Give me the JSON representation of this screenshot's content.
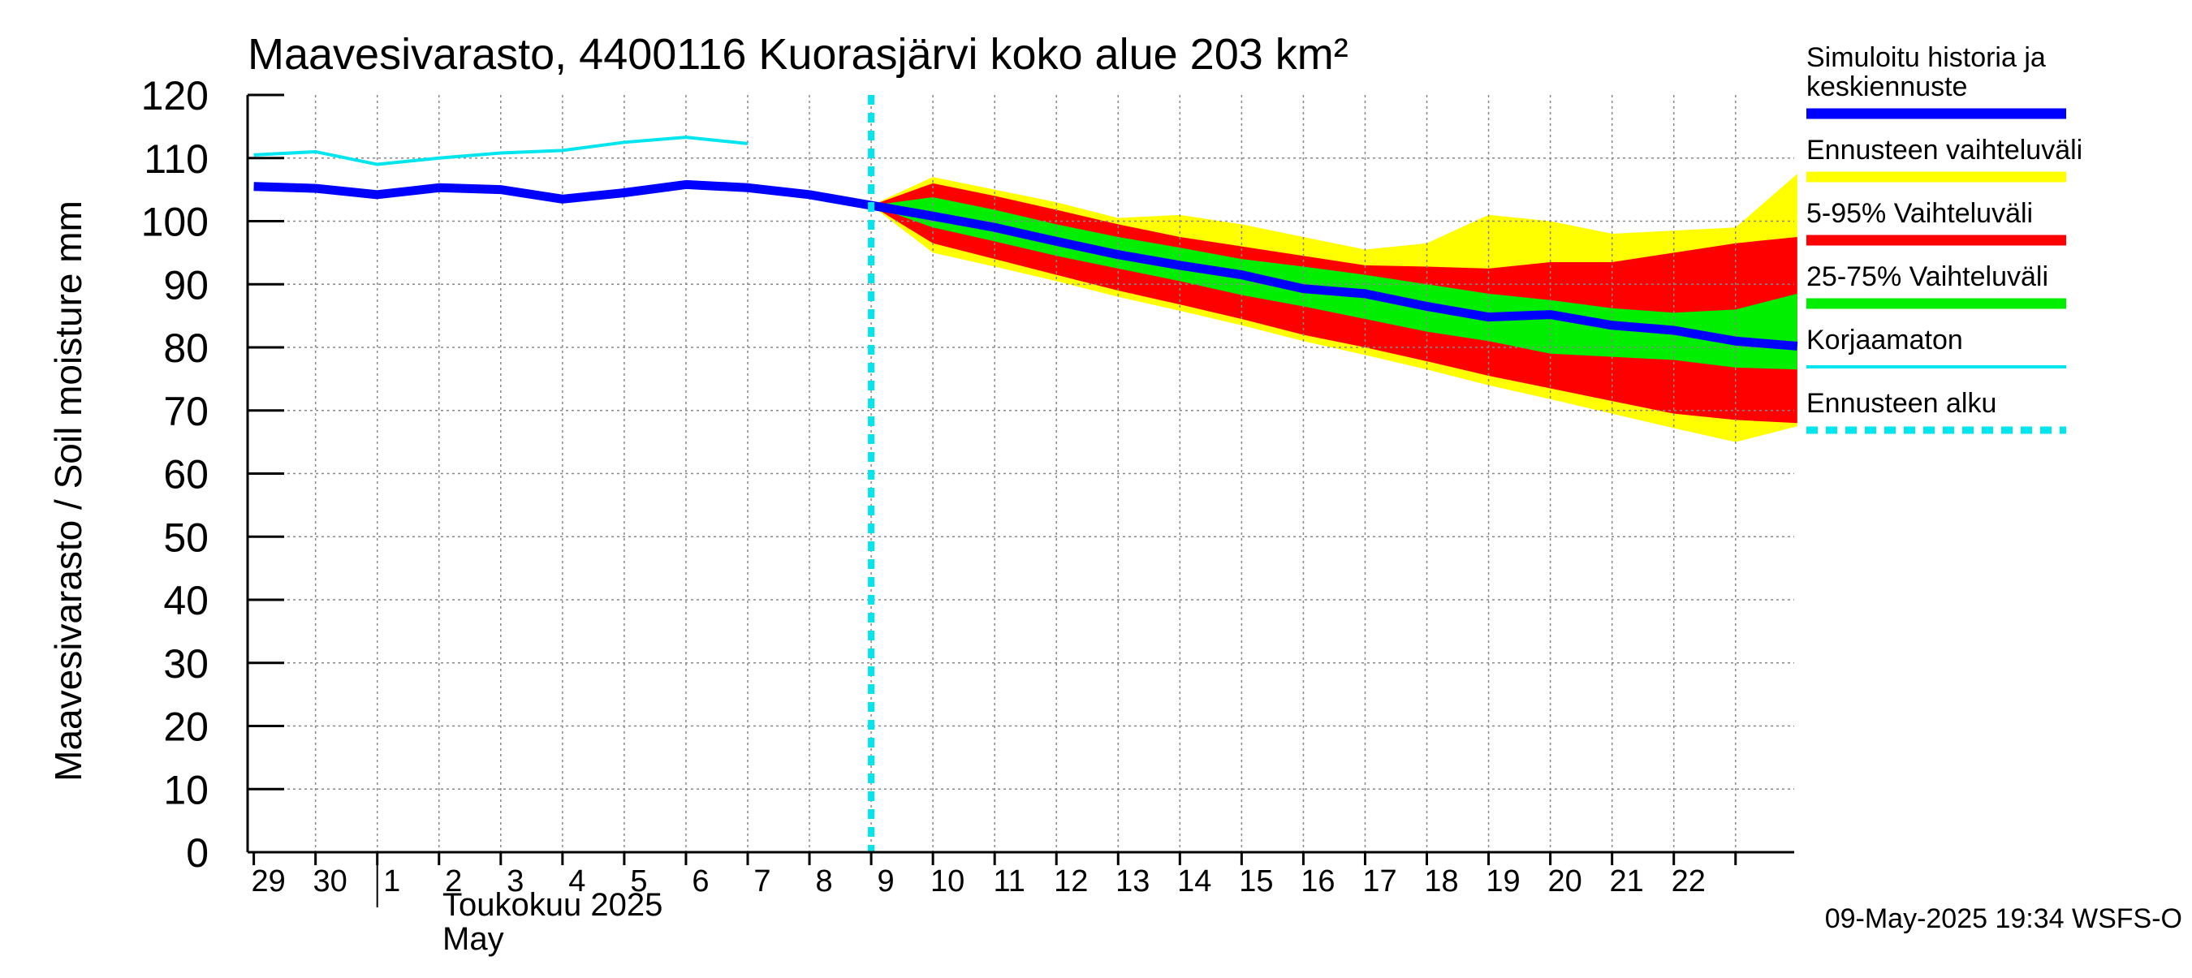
{
  "chart_data": {
    "type": "area",
    "title": "Maavesivarasto, 4400116 Kuorasjärvi koko alue 203 km²",
    "ylabel": "Maavesivarasto / Soil moisture   mm",
    "ylim": [
      0,
      120
    ],
    "yticks": [
      0,
      10,
      20,
      30,
      40,
      50,
      60,
      70,
      80,
      90,
      100,
      110,
      120
    ],
    "grid": true,
    "x_range": [
      28.9,
      22.95
    ],
    "days": [
      29,
      30,
      1,
      2,
      3,
      4,
      5,
      6,
      7,
      8,
      9,
      10,
      11,
      12,
      13,
      14,
      15,
      16,
      17,
      18,
      19,
      20,
      21,
      22
    ],
    "xtick_labels": [
      "29",
      "30",
      "1",
      "2",
      "3",
      "4",
      "5",
      "6",
      "7",
      "8",
      "9",
      "10",
      "11",
      "12",
      "13",
      "14",
      "15",
      "16",
      "17",
      "18",
      "19",
      "20",
      "21",
      "22"
    ],
    "month_label_fi": "Toukokuu  2025",
    "month_label_en": "May",
    "forecast_start": 9,
    "series": {
      "simulated": {
        "name": "Simuloitu historia ja keskiennuste",
        "color": "#0000ff",
        "x": [
          0,
          1,
          2,
          3,
          4,
          5,
          6,
          7,
          8,
          9,
          10,
          11,
          12,
          13,
          14,
          15,
          16,
          17,
          18,
          19,
          20,
          21,
          22,
          23,
          24,
          25
        ],
        "values": [
          105.5,
          105.2,
          104.2,
          105.3,
          105.0,
          103.5,
          104.5,
          105.8,
          105.3,
          104.2,
          102.5,
          100.8,
          99.0,
          96.8,
          94.7,
          93.0,
          91.5,
          89.3,
          88.5,
          86.5,
          84.8,
          85.2,
          83.5,
          82.7,
          81.0,
          80.2
        ]
      },
      "uncorrected": {
        "name": "Korjaamaton",
        "color": "#00e5ee",
        "x": [
          0,
          1,
          2,
          3,
          4,
          5,
          6,
          7,
          8
        ],
        "values": [
          110.5,
          111.0,
          109.0,
          110.0,
          110.8,
          111.2,
          112.5,
          113.3,
          112.3
        ]
      },
      "forecast_range": {
        "name": "Ennusteen vaihteluväli",
        "color": "#ffff00",
        "x": [
          10,
          11,
          12,
          13,
          14,
          15,
          16,
          17,
          18,
          19,
          20,
          21,
          22,
          23,
          24,
          25
        ],
        "upper": [
          102.5,
          107.0,
          105.0,
          103.0,
          100.5,
          101.0,
          99.5,
          97.5,
          95.5,
          96.5,
          101.0,
          100.0,
          98.0,
          98.5,
          99.0,
          107.5
        ],
        "lower": [
          102.5,
          95.0,
          92.8,
          90.5,
          88.0,
          85.8,
          83.5,
          81.0,
          78.8,
          76.5,
          74.0,
          71.8,
          69.5,
          67.2,
          65.0,
          67.5
        ]
      },
      "p5_95": {
        "name": "5-95% Vaihteluväli",
        "color": "#ff0000",
        "x": [
          10,
          11,
          12,
          13,
          14,
          15,
          16,
          17,
          18,
          19,
          20,
          21,
          22,
          23,
          24,
          25
        ],
        "upper": [
          102.5,
          106.0,
          104.0,
          101.8,
          99.5,
          97.5,
          96.0,
          94.5,
          93.0,
          92.8,
          92.5,
          93.5,
          93.5,
          95.0,
          96.5,
          97.5
        ],
        "lower": [
          102.5,
          96.5,
          94.0,
          91.5,
          89.0,
          86.8,
          84.5,
          82.0,
          80.0,
          77.8,
          75.5,
          73.5,
          71.5,
          69.5,
          68.5,
          68.0
        ]
      },
      "p25_75": {
        "name": "25-75% Vaihteluväli",
        "color": "#00ee00",
        "x": [
          10,
          11,
          12,
          13,
          14,
          15,
          16,
          17,
          18,
          19,
          20,
          21,
          22,
          23,
          24,
          25
        ],
        "upper": [
          102.5,
          103.8,
          101.8,
          99.5,
          97.5,
          95.8,
          94.0,
          92.8,
          91.5,
          90.0,
          88.5,
          87.5,
          86.2,
          85.5,
          86.0,
          88.5
        ],
        "lower": [
          102.5,
          99.0,
          96.8,
          94.5,
          92.5,
          90.5,
          88.3,
          86.5,
          84.5,
          82.5,
          81.0,
          79.0,
          78.5,
          78.0,
          76.8,
          76.5
        ]
      }
    },
    "legend": [
      {
        "label_lines": [
          "Simuloitu historia ja",
          "keskiennuste"
        ],
        "color": "#0000ff",
        "style": "thick"
      },
      {
        "label_lines": [
          "Ennusteen vaihteluväli"
        ],
        "color": "#ffff00",
        "style": "thick"
      },
      {
        "label_lines": [
          "5-95% Vaihteluväli"
        ],
        "color": "#ff0000",
        "style": "thick"
      },
      {
        "label_lines": [
          "25-75% Vaihteluväli"
        ],
        "color": "#00ee00",
        "style": "thick"
      },
      {
        "label_lines": [
          "Korjaamaton"
        ],
        "color": "#00e5ee",
        "style": "thin"
      },
      {
        "label_lines": [
          "Ennusteen alku"
        ],
        "color": "#00e5ee",
        "style": "dashed"
      }
    ],
    "legend_position": "right",
    "footer": "09-May-2025 19:34 WSFS-O"
  }
}
